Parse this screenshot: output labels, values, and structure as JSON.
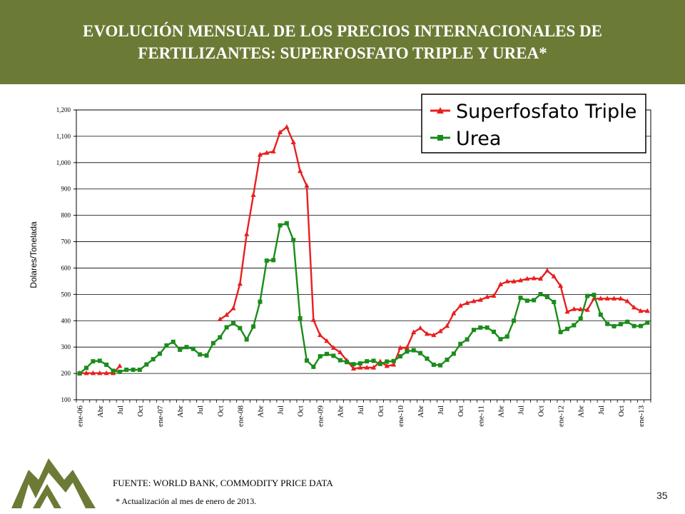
{
  "title": "EVOLUCIÓN MENSUAL DE LOS PRECIOS INTERNACIONALES DE FERTILIZANTES: SUPERFOSFATO TRIPLE Y UREA*",
  "source": "FUENTE: WORLD BANK, COMMODITY PRICE DATA",
  "note": "* Actualización al mes de enero de 2013.",
  "page_number": "35",
  "logo": {
    "icon": "mountain-logo",
    "color": "#6b7a35"
  },
  "chart_data": {
    "type": "line",
    "title": "",
    "xlabel": "",
    "ylabel": "Dolares/Tonelada",
    "ylim": [
      100,
      1200
    ],
    "yticks": [
      100,
      200,
      300,
      400,
      500,
      600,
      700,
      800,
      900,
      1000,
      1100,
      1200
    ],
    "ytick_labels": [
      "100",
      "200",
      "300",
      "400",
      "500",
      "600",
      "700",
      "800",
      "900",
      "1,000",
      "1,100",
      "1,200"
    ],
    "grid": true,
    "legend_position": "top-right",
    "xtick_labels": [
      "ene-06",
      "Abr",
      "Jul",
      "Oct",
      "ene-07",
      "Abr",
      "Jul",
      "Oct",
      "ene-08",
      "Abr",
      "Jul",
      "Oct",
      "ene-09",
      "Abr",
      "Jul",
      "Oct",
      "ene-10",
      "Abr",
      "Jul",
      "Oct",
      "ene-11",
      "Abr",
      "Jul",
      "Oct",
      "ene-12",
      "Abr",
      "Jul",
      "Oct",
      "ene-13"
    ],
    "series": [
      {
        "name": "Superfosfato Triple",
        "color": "#e81f1f",
        "marker": "triangle",
        "values": [
          201,
          201,
          201,
          201,
          201,
          201,
          228,
          null,
          null,
          null,
          null,
          null,
          null,
          null,
          null,
          null,
          null,
          null,
          null,
          null,
          null,
          405,
          422,
          447,
          540,
          728,
          877,
          1030,
          1037,
          1042,
          1115,
          1135,
          1077,
          968,
          912,
          403,
          345,
          323,
          297,
          280,
          249,
          218,
          222,
          222,
          222,
          245,
          228,
          233,
          297,
          298,
          356,
          372,
          350,
          345,
          360,
          380,
          428,
          457,
          467,
          474,
          479,
          490,
          494,
          538,
          549,
          549,
          553,
          559,
          561,
          559,
          590,
          568,
          532,
          434,
          444,
          443,
          441,
          484,
          484,
          484,
          484,
          484,
          474,
          450,
          437,
          437
        ]
      },
      {
        "name": "Urea",
        "color": "#1a8c1a",
        "marker": "square",
        "values": [
          200,
          221,
          246,
          248,
          233,
          210,
          206,
          214,
          214,
          214,
          234,
          254,
          275,
          306,
          320,
          290,
          300,
          293,
          272,
          268,
          315,
          337,
          375,
          390,
          372,
          329,
          378,
          472,
          628,
          630,
          762,
          770,
          706,
          409,
          249,
          225,
          265,
          274,
          267,
          250,
          243,
          235,
          238,
          246,
          248,
          236,
          245,
          247,
          265,
          283,
          288,
          277,
          256,
          233,
          231,
          252,
          275,
          312,
          329,
          365,
          374,
          374,
          358,
          330,
          340,
          400,
          487,
          476,
          478,
          501,
          490,
          471,
          357,
          369,
          383,
          408,
          494,
          498,
          423,
          388,
          379,
          387,
          396,
          380,
          380,
          393
        ]
      }
    ]
  }
}
